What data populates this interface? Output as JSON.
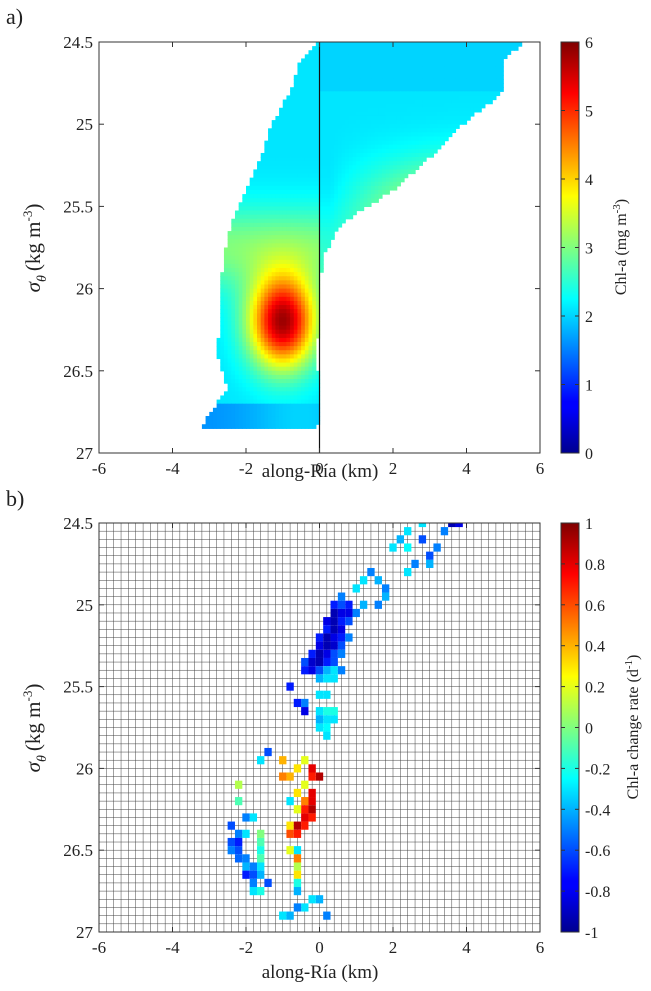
{
  "chart_data": [
    {
      "panel_label": "a)",
      "type": "heatmap",
      "xlabel": "along-Ría (km)",
      "ylabel_main": "σ",
      "ylabel_sub": "θ",
      "ylabel_units": "(kg m",
      "ylabel_exp": "-3",
      "ylabel_close": ")",
      "xlim": [
        -6,
        6
      ],
      "ylim": [
        24.5,
        27
      ],
      "y_reversed": true,
      "xticks": [
        "-6",
        "-4",
        "-2",
        "0",
        "2",
        "4",
        "6"
      ],
      "yticks": [
        "24.5",
        "25",
        "25.5",
        "26",
        "26.5",
        "27"
      ],
      "colorbar": {
        "label": "Chl-a (mg m",
        "label_exp": "-3",
        "label_close": ")",
        "range": [
          0,
          6
        ],
        "ticks": [
          "0",
          "1",
          "2",
          "3",
          "4",
          "5",
          "6"
        ],
        "colormap": "jet"
      },
      "field_extent": [
        {
          "sigma": 24.5,
          "x_min": 0.0,
          "x_max": 5.6
        },
        {
          "sigma": 24.6,
          "x_min": -0.5,
          "x_max": 5.0
        },
        {
          "sigma": 24.8,
          "x_min": -0.8,
          "x_max": 5.0
        },
        {
          "sigma": 25.0,
          "x_min": -1.3,
          "x_max": 3.9
        },
        {
          "sigma": 25.2,
          "x_min": -1.6,
          "x_max": 3.0
        },
        {
          "sigma": 25.4,
          "x_min": -2.0,
          "x_max": 2.0
        },
        {
          "sigma": 25.6,
          "x_min": -2.4,
          "x_max": 0.6
        },
        {
          "sigma": 25.8,
          "x_min": -2.6,
          "x_max": 0.1
        },
        {
          "sigma": 26.0,
          "x_min": -2.7,
          "x_max": 0.0
        },
        {
          "sigma": 26.2,
          "x_min": -2.7,
          "x_max": 0.0
        },
        {
          "sigma": 26.4,
          "x_min": -2.8,
          "x_max": -0.1
        },
        {
          "sigma": 26.6,
          "x_min": -2.5,
          "x_max": 0.0
        },
        {
          "sigma": 26.8,
          "x_min": -3.1,
          "x_max": 0.0
        },
        {
          "sigma": 26.85,
          "x_min": -3.2,
          "x_max": -0.1
        }
      ],
      "maximum": {
        "x": -1.0,
        "sigma": 26.2,
        "value": 5.8
      },
      "reference_line_x": 0
    },
    {
      "panel_label": "b)",
      "type": "heatmap",
      "xlabel": "along-Ría (km)",
      "ylabel_main": "σ",
      "ylabel_sub": "θ",
      "ylabel_units": "(kg m",
      "ylabel_exp": "-3",
      "ylabel_close": ")",
      "xlim": [
        -6,
        6
      ],
      "ylim": [
        24.5,
        27
      ],
      "y_reversed": true,
      "grid": true,
      "grid_cell": {
        "dx_km": 0.2,
        "dsigma": 0.05
      },
      "xticks": [
        "-6",
        "-4",
        "-2",
        "0",
        "2",
        "4",
        "6"
      ],
      "yticks": [
        "24.5",
        "25",
        "25.5",
        "26",
        "26.5",
        "27"
      ],
      "colorbar": {
        "label": "Chl-a change rate (d",
        "label_exp": "-1",
        "label_close": ")",
        "range": [
          -1,
          1
        ],
        "ticks": [
          "-1",
          "-0.8",
          "-0.6",
          "-0.4",
          "-0.2",
          "0",
          "0.2",
          "0.4",
          "0.6",
          "0.8",
          "1"
        ],
        "colormap": "jet"
      },
      "cells": [
        [
          3.6,
          24.5,
          -0.9
        ],
        [
          3.8,
          24.5,
          -0.8
        ],
        [
          2.8,
          24.5,
          -0.3
        ],
        [
          2.4,
          24.55,
          -0.3
        ],
        [
          3.4,
          24.55,
          -0.5
        ],
        [
          2.2,
          24.6,
          -0.4
        ],
        [
          2.8,
          24.6,
          -0.6
        ],
        [
          2.0,
          24.65,
          -0.3
        ],
        [
          2.4,
          24.65,
          -0.25
        ],
        [
          3.2,
          24.65,
          -0.5
        ],
        [
          3.0,
          24.7,
          -0.6
        ],
        [
          2.6,
          24.75,
          -0.5
        ],
        [
          3.0,
          24.75,
          -0.4
        ],
        [
          1.4,
          24.8,
          -0.5
        ],
        [
          2.4,
          24.8,
          -0.3
        ],
        [
          1.6,
          24.85,
          -0.4
        ],
        [
          1.2,
          24.85,
          -0.3
        ],
        [
          1.8,
          24.9,
          -0.5
        ],
        [
          1.0,
          24.9,
          -0.3
        ],
        [
          1.8,
          24.95,
          -0.4
        ],
        [
          0.6,
          24.95,
          -0.5
        ],
        [
          1.2,
          25.0,
          -0.4
        ],
        [
          0.4,
          25.0,
          -0.7
        ],
        [
          0.6,
          25.0,
          -0.6
        ],
        [
          0.8,
          25.0,
          -0.7
        ],
        [
          1.6,
          25.0,
          -0.5
        ],
        [
          0.4,
          25.05,
          -0.9
        ],
        [
          0.6,
          25.05,
          -0.8
        ],
        [
          0.8,
          25.05,
          -0.8
        ],
        [
          1.0,
          25.05,
          -0.5
        ],
        [
          0.2,
          25.1,
          -0.8
        ],
        [
          0.4,
          25.1,
          -0.9
        ],
        [
          0.6,
          25.1,
          -0.7
        ],
        [
          0.8,
          25.1,
          -0.6
        ],
        [
          0.2,
          25.15,
          -0.7
        ],
        [
          0.4,
          25.15,
          -0.9
        ],
        [
          0.6,
          25.15,
          -0.8
        ],
        [
          0.0,
          25.2,
          -0.7
        ],
        [
          0.2,
          25.2,
          -0.9
        ],
        [
          0.4,
          25.2,
          -0.8
        ],
        [
          0.6,
          25.2,
          -0.7
        ],
        [
          0.8,
          25.2,
          -0.5
        ],
        [
          0.0,
          25.25,
          -0.8
        ],
        [
          0.2,
          25.25,
          -0.9
        ],
        [
          0.4,
          25.25,
          -0.85
        ],
        [
          0.6,
          25.25,
          -0.6
        ],
        [
          -0.2,
          25.3,
          -0.7
        ],
        [
          0.0,
          25.3,
          -0.9
        ],
        [
          0.2,
          25.3,
          -0.8
        ],
        [
          0.4,
          25.3,
          -0.6
        ],
        [
          0.6,
          25.3,
          -0.5
        ],
        [
          -0.4,
          25.35,
          -0.6
        ],
        [
          -0.2,
          25.35,
          -0.85
        ],
        [
          0.0,
          25.35,
          -0.9
        ],
        [
          0.2,
          25.35,
          -0.7
        ],
        [
          0.4,
          25.35,
          -0.6
        ],
        [
          -0.4,
          25.4,
          -0.7
        ],
        [
          -0.2,
          25.4,
          -0.8
        ],
        [
          0.0,
          25.4,
          -0.6
        ],
        [
          0.2,
          25.4,
          -0.4
        ],
        [
          0.4,
          25.4,
          -0.3
        ],
        [
          0.6,
          25.4,
          -0.5
        ],
        [
          0.0,
          25.45,
          -0.4
        ],
        [
          0.2,
          25.45,
          -0.3
        ],
        [
          0.4,
          25.45,
          -0.3
        ],
        [
          -0.8,
          25.5,
          -0.7
        ],
        [
          0.0,
          25.55,
          -0.3
        ],
        [
          0.2,
          25.55,
          -0.3
        ],
        [
          -0.4,
          25.6,
          -0.5
        ],
        [
          -0.6,
          25.6,
          -0.7
        ],
        [
          -0.4,
          25.65,
          -0.8
        ],
        [
          0.0,
          25.65,
          -0.3
        ],
        [
          0.2,
          25.65,
          -0.2
        ],
        [
          0.4,
          25.65,
          -0.2
        ],
        [
          0.0,
          25.7,
          -0.4
        ],
        [
          0.2,
          25.7,
          -0.3
        ],
        [
          0.4,
          25.7,
          -0.3
        ],
        [
          0.0,
          25.75,
          -0.3
        ],
        [
          0.2,
          25.75,
          -0.25
        ],
        [
          0.2,
          25.8,
          -0.3
        ],
        [
          -1.4,
          25.9,
          -0.6
        ],
        [
          -1.6,
          25.95,
          -0.3
        ],
        [
          -0.4,
          25.95,
          0.2
        ],
        [
          -1.0,
          25.95,
          0.4
        ],
        [
          -0.2,
          26.0,
          0.8
        ],
        [
          -0.6,
          26.0,
          0.3
        ],
        [
          0.0,
          26.05,
          0.9
        ],
        [
          -0.2,
          26.05,
          0.7
        ],
        [
          -0.8,
          26.05,
          0.4
        ],
        [
          -1.0,
          26.05,
          0.5
        ],
        [
          -2.2,
          26.1,
          0.1
        ],
        [
          -0.4,
          26.1,
          0.2
        ],
        [
          -0.2,
          26.15,
          0.8
        ],
        [
          -0.6,
          26.15,
          0.3
        ],
        [
          -2.2,
          26.2,
          -0.1
        ],
        [
          -0.2,
          26.2,
          0.8
        ],
        [
          -0.4,
          26.2,
          0.5
        ],
        [
          -0.8,
          26.2,
          -0.3
        ],
        [
          -0.4,
          26.25,
          0.7
        ],
        [
          -0.2,
          26.25,
          0.9
        ],
        [
          -0.6,
          26.25,
          0.2
        ],
        [
          -1.8,
          26.3,
          -0.3
        ],
        [
          -2.0,
          26.3,
          -0.5
        ],
        [
          -0.4,
          26.3,
          0.8
        ],
        [
          -0.2,
          26.3,
          0.7
        ],
        [
          -0.8,
          26.35,
          0.3
        ],
        [
          -0.6,
          26.35,
          0.9
        ],
        [
          -0.4,
          26.35,
          0.7
        ],
        [
          -2.4,
          26.35,
          -0.6
        ],
        [
          -2.2,
          26.4,
          -0.5
        ],
        [
          -2.0,
          26.4,
          -0.3
        ],
        [
          -1.6,
          26.4,
          0.0
        ],
        [
          -0.8,
          26.4,
          0.6
        ],
        [
          -0.6,
          26.4,
          0.7
        ],
        [
          -2.4,
          26.45,
          -0.6
        ],
        [
          -2.2,
          26.45,
          -0.7
        ],
        [
          -1.6,
          26.45,
          -0.1
        ],
        [
          -0.6,
          26.5,
          -0.3
        ],
        [
          -2.4,
          26.5,
          -0.5
        ],
        [
          -2.2,
          26.5,
          -0.6
        ],
        [
          -1.6,
          26.5,
          -0.2
        ],
        [
          -0.8,
          26.5,
          0.2
        ],
        [
          -2.2,
          26.55,
          -0.55
        ],
        [
          -2.0,
          26.55,
          -0.5
        ],
        [
          -1.6,
          26.55,
          -0.1
        ],
        [
          -0.6,
          26.55,
          0.5
        ],
        [
          -2.0,
          26.6,
          -0.4
        ],
        [
          -1.8,
          26.6,
          -0.5
        ],
        [
          -1.6,
          26.6,
          -0.3
        ],
        [
          -0.6,
          26.6,
          0.1
        ],
        [
          -1.8,
          26.65,
          -0.6
        ],
        [
          -0.6,
          26.65,
          0.3
        ],
        [
          -1.6,
          26.65,
          -0.4
        ],
        [
          -2.0,
          26.65,
          -0.7
        ],
        [
          -1.8,
          26.7,
          -0.5
        ],
        [
          -1.4,
          26.7,
          -0.6
        ],
        [
          -0.6,
          26.7,
          -0.2
        ],
        [
          -1.8,
          26.75,
          -0.3
        ],
        [
          -1.6,
          26.75,
          -0.2
        ],
        [
          -0.6,
          26.75,
          -0.4
        ],
        [
          0.0,
          26.8,
          -0.4
        ],
        [
          -0.2,
          26.8,
          -0.3
        ],
        [
          -0.4,
          26.85,
          -0.3
        ],
        [
          -0.6,
          26.85,
          -0.5
        ],
        [
          -1.0,
          26.9,
          -0.3
        ],
        [
          -0.8,
          26.9,
          -0.4
        ],
        [
          0.2,
          26.9,
          -0.5
        ]
      ]
    }
  ]
}
